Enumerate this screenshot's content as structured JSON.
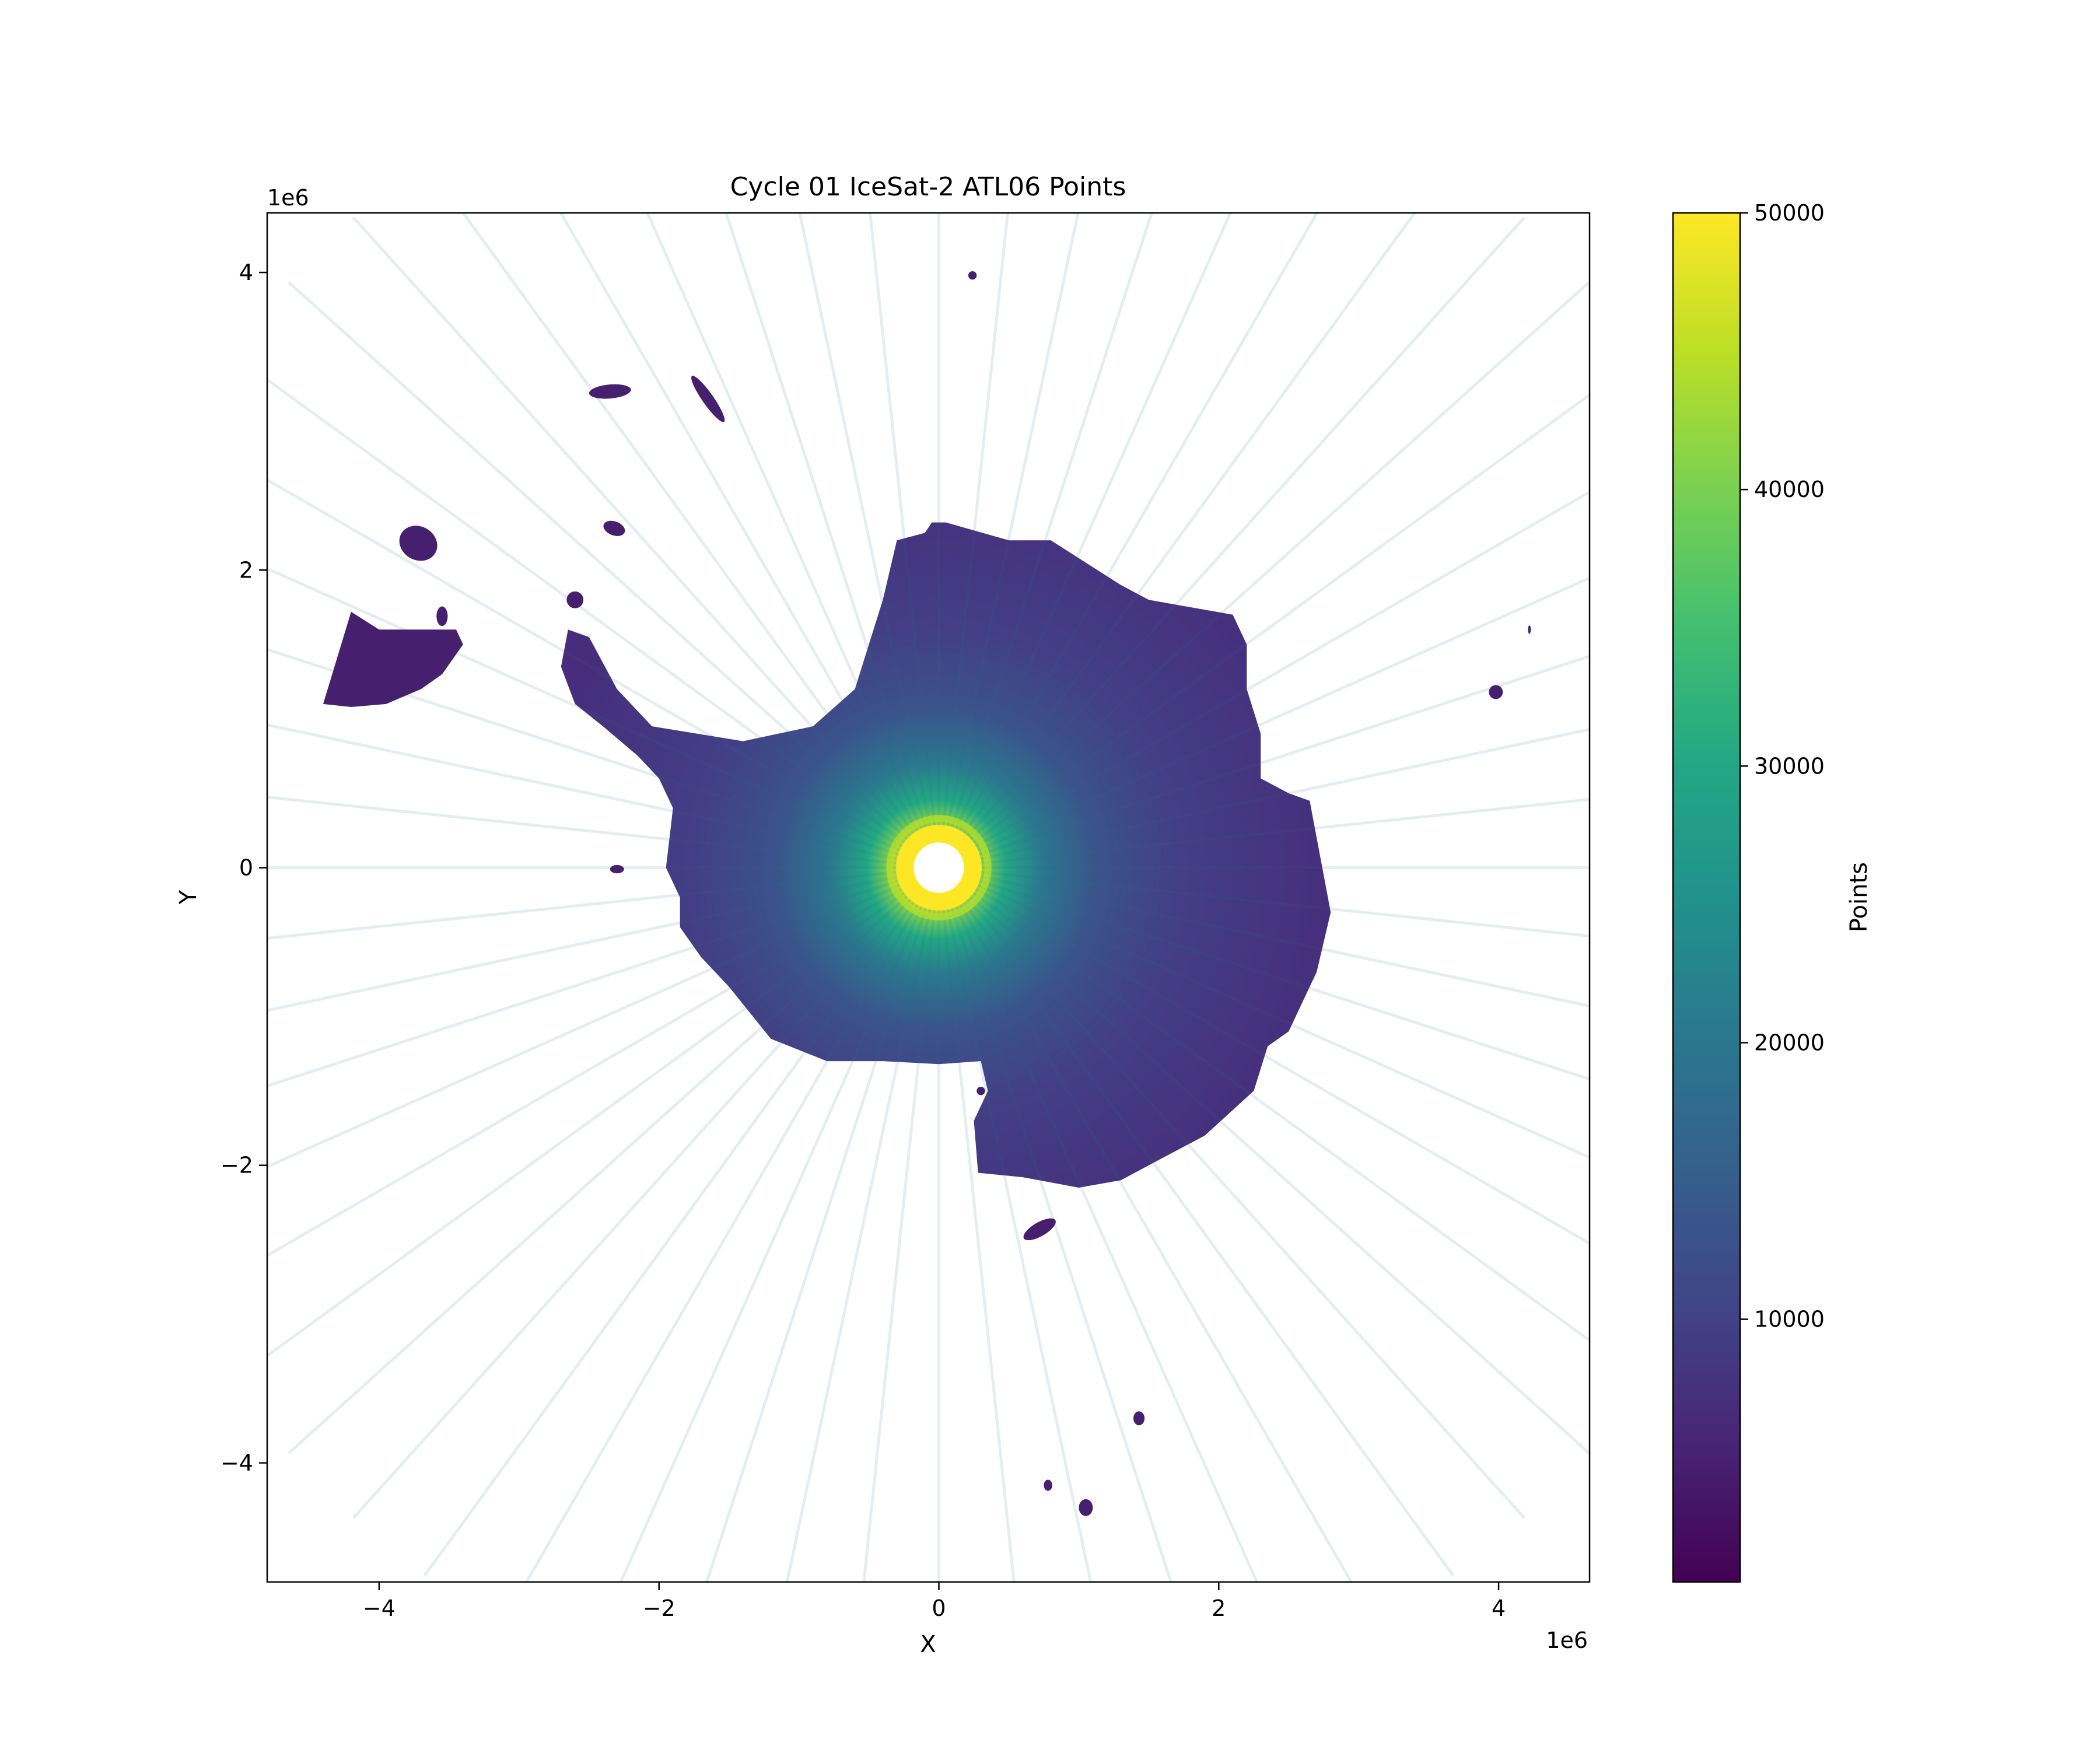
{
  "chart_data": {
    "type": "heatmap",
    "title": "Cycle 01 IceSat-2 ATL06 Points",
    "xlabel": "X",
    "ylabel": "Y",
    "x_offset_label": "1e6",
    "y_offset_label": "1e6",
    "xlim": [
      -4.8,
      4.65
    ],
    "ylim": [
      -4.8,
      4.4
    ],
    "x_ticks": [
      {
        "value": -4,
        "label": "−4"
      },
      {
        "value": -2,
        "label": "−2"
      },
      {
        "value": 0,
        "label": "0"
      },
      {
        "value": 2,
        "label": "2"
      },
      {
        "value": 4,
        "label": "4"
      }
    ],
    "y_ticks": [
      {
        "value": 4,
        "label": "4"
      },
      {
        "value": 2,
        "label": "2"
      },
      {
        "value": 0,
        "label": "0"
      },
      {
        "value": -2,
        "label": "−2"
      },
      {
        "value": -4,
        "label": "−4"
      }
    ],
    "colorbar": {
      "label": "Points",
      "colormap": "viridis",
      "range": [
        500,
        50000
      ],
      "ticks": [
        {
          "value": 10000,
          "label": "10000"
        },
        {
          "value": 20000,
          "label": "20000"
        },
        {
          "value": 30000,
          "label": "30000"
        },
        {
          "value": 40000,
          "label": "40000"
        },
        {
          "value": 50000,
          "label": "50000"
        }
      ]
    },
    "continent": {
      "outline_units_1e6": [
        [
          -0.05,
          2.32
        ],
        [
          0.05,
          2.32
        ],
        [
          0.5,
          2.2
        ],
        [
          0.8,
          2.2
        ],
        [
          1.3,
          1.9
        ],
        [
          1.5,
          1.8
        ],
        [
          2.1,
          1.7
        ],
        [
          2.2,
          1.5
        ],
        [
          2.2,
          1.2
        ],
        [
          2.3,
          0.9
        ],
        [
          2.3,
          0.6
        ],
        [
          2.5,
          0.5
        ],
        [
          2.65,
          0.45
        ],
        [
          2.7,
          0.2
        ],
        [
          2.8,
          -0.3
        ],
        [
          2.7,
          -0.7
        ],
        [
          2.6,
          -0.9
        ],
        [
          2.5,
          -1.1
        ],
        [
          2.35,
          -1.2
        ],
        [
          2.25,
          -1.5
        ],
        [
          1.9,
          -1.8
        ],
        [
          1.6,
          -1.95
        ],
        [
          1.3,
          -2.1
        ],
        [
          1.0,
          -2.15
        ],
        [
          0.6,
          -2.08
        ],
        [
          0.28,
          -2.05
        ],
        [
          0.25,
          -1.7
        ],
        [
          0.35,
          -1.5
        ],
        [
          0.3,
          -1.3
        ],
        [
          0.0,
          -1.32
        ],
        [
          -0.4,
          -1.3
        ],
        [
          -0.8,
          -1.3
        ],
        [
          -1.2,
          -1.15
        ],
        [
          -1.5,
          -0.8
        ],
        [
          -1.7,
          -0.6
        ],
        [
          -1.85,
          -0.4
        ],
        [
          -1.85,
          -0.2
        ],
        [
          -1.95,
          0.0
        ],
        [
          -1.9,
          0.4
        ],
        [
          -2.0,
          0.6
        ],
        [
          -2.15,
          0.75
        ],
        [
          -2.4,
          0.95
        ],
        [
          -2.6,
          1.1
        ],
        [
          -2.7,
          1.35
        ],
        [
          -2.65,
          1.6
        ],
        [
          -2.5,
          1.55
        ],
        [
          -2.3,
          1.2
        ],
        [
          -2.05,
          0.95
        ],
        [
          -1.4,
          0.85
        ],
        [
          -0.9,
          0.95
        ],
        [
          -0.6,
          1.2
        ],
        [
          -0.5,
          1.5
        ],
        [
          -0.4,
          1.8
        ],
        [
          -0.3,
          2.2
        ],
        [
          -0.1,
          2.25
        ]
      ],
      "pole_gap_radius_units_1e6": 0.18
    },
    "islands_units_1e6": [
      {
        "x": 0.24,
        "y": 3.98,
        "rx": 0.03,
        "ry": 0.03,
        "rot": 0
      },
      {
        "x": -2.35,
        "y": 3.2,
        "rx": 0.15,
        "ry": 0.05,
        "rot": -5
      },
      {
        "x": -1.65,
        "y": 3.15,
        "rx": 0.2,
        "ry": 0.04,
        "rot": 55
      },
      {
        "x": -2.32,
        "y": 2.28,
        "rx": 0.08,
        "ry": 0.05,
        "rot": 20
      },
      {
        "x": -3.72,
        "y": 2.18,
        "rx": 0.14,
        "ry": 0.12,
        "rot": 30
      },
      {
        "x": -3.55,
        "y": 1.69,
        "rx": 0.04,
        "ry": 0.07,
        "rot": 0
      },
      {
        "x": -2.6,
        "y": 1.8,
        "rx": 0.06,
        "ry": 0.06,
        "rot": 0
      },
      {
        "x": -2.3,
        "y": -0.01,
        "rx": 0.05,
        "ry": 0.03,
        "rot": 0
      },
      {
        "x": 3.98,
        "y": 1.18,
        "rx": 0.05,
        "ry": 0.05,
        "rot": 0
      },
      {
        "x": 4.22,
        "y": 1.6,
        "rx": 0.01,
        "ry": 0.03,
        "rot": 0
      },
      {
        "x": 0.3,
        "y": -1.5,
        "rx": 0.03,
        "ry": 0.03,
        "rot": 0
      },
      {
        "x": 0.72,
        "y": -2.43,
        "rx": 0.13,
        "ry": 0.05,
        "rot": -30
      },
      {
        "x": 1.43,
        "y": -3.7,
        "rx": 0.04,
        "ry": 0.05,
        "rot": 0
      },
      {
        "x": 0.78,
        "y": -4.15,
        "rx": 0.03,
        "ry": 0.04,
        "rot": 0
      },
      {
        "x": 1.05,
        "y": -4.3,
        "rx": 0.05,
        "ry": 0.06,
        "rot": 0
      }
    ],
    "patch_units_1e6": [
      [
        -4.4,
        1.1
      ],
      [
        -4.2,
        1.72
      ],
      [
        -4.0,
        1.6
      ],
      [
        -3.6,
        1.6
      ],
      [
        -3.45,
        1.6
      ],
      [
        -3.4,
        1.5
      ],
      [
        -3.55,
        1.3
      ],
      [
        -3.7,
        1.2
      ],
      [
        -3.95,
        1.1
      ],
      [
        -4.2,
        1.08
      ]
    ]
  }
}
